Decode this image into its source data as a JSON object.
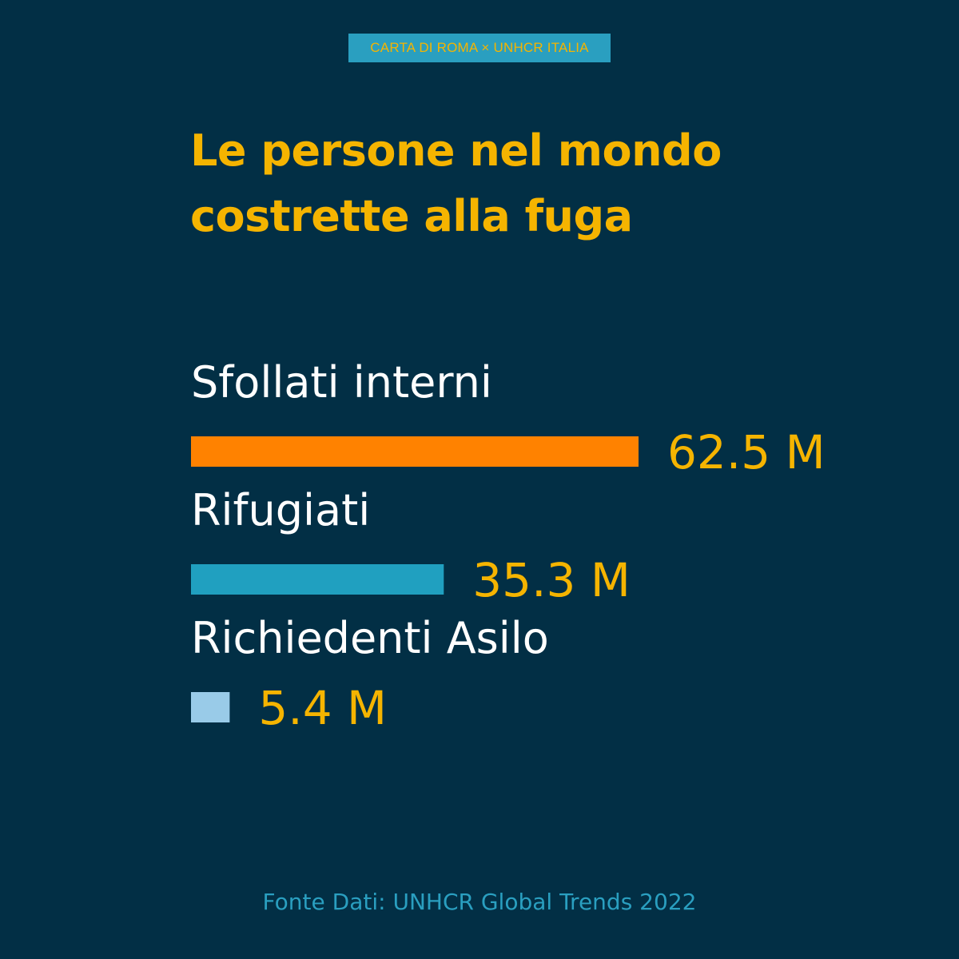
{
  "header": {
    "tag": "CARTA DI ROMA × UNHCR ITALIA",
    "title_lines": [
      "Le persone nel mondo",
      "costrette alla fuga"
    ]
  },
  "colors": {
    "background": "#022f45",
    "accent_yellow": "#f5b400",
    "tag_background": "#2a9fc0",
    "label_text": "#ffffff",
    "source_text": "#2a9fc0"
  },
  "chart_data": {
    "type": "bar",
    "orientation": "horizontal",
    "unit": "M",
    "categories": [
      "Sfollati interni",
      "Rifugiati",
      "Richiedenti Asilo"
    ],
    "values": [
      62.5,
      35.3,
      5.4
    ],
    "value_labels": [
      "62.5 M",
      "35.3 M",
      "5.4 M"
    ],
    "bar_colors": [
      "#ff8200",
      "#20a0c0",
      "#99cbe8"
    ],
    "xlim": [
      0,
      62.5
    ],
    "grid": false,
    "legend": "none"
  },
  "footer": {
    "source": "Fonte Dati: UNHCR Global Trends 2022"
  }
}
